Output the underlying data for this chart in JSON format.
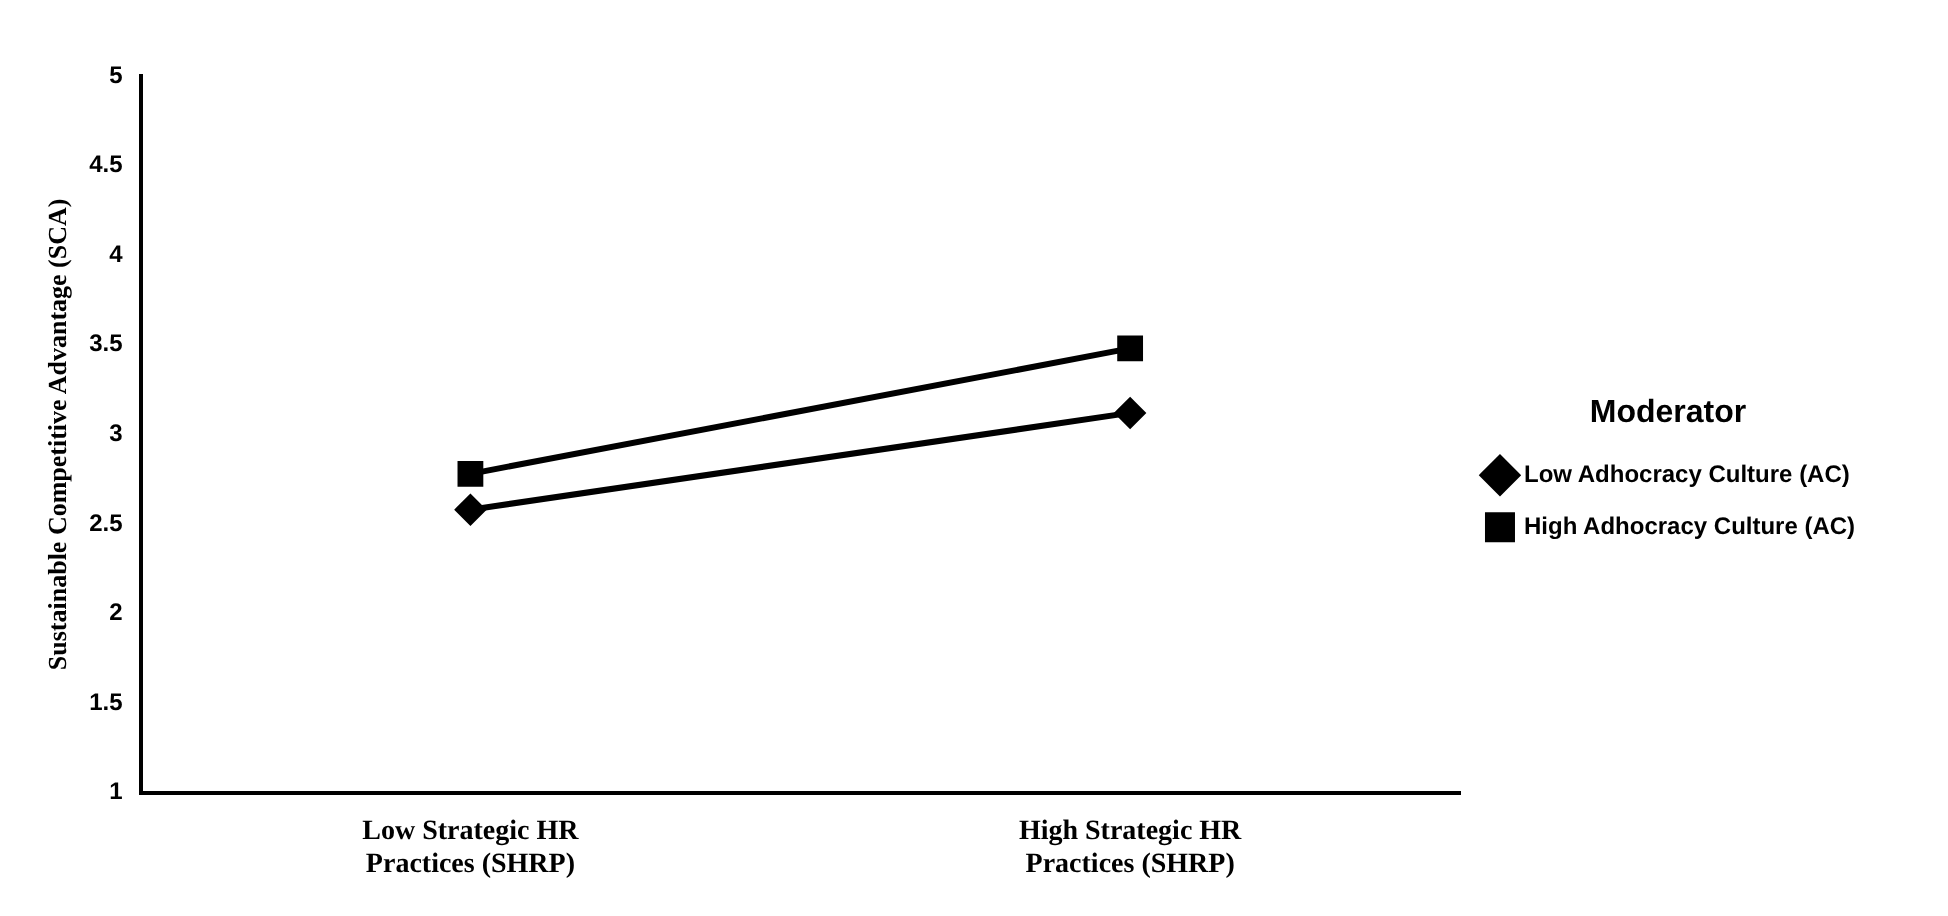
{
  "chart_data": {
    "type": "line",
    "ylabel": "Sustainable Competitive Advantage (SCA)",
    "legend_title": "Moderator",
    "legend": "right",
    "categories": [
      "Low Strategic HR Practices (SHRP)",
      "High Strategic HR Practices (SHRP)"
    ],
    "series": [
      {
        "name": "Low Adhocracy Culture (AC)",
        "color": "#000000",
        "marker": "diamond",
        "values": [
          2.58,
          3.12
        ]
      },
      {
        "name": "High Adhocracy Culture (AC)",
        "color": "#000000",
        "marker": "square",
        "values": [
          2.78,
          3.48
        ]
      }
    ],
    "ylim": [
      1,
      5
    ],
    "yticks": [
      1,
      1.5,
      2,
      2.5,
      3,
      3.5,
      4,
      4.5,
      5
    ],
    "grid": false
  }
}
